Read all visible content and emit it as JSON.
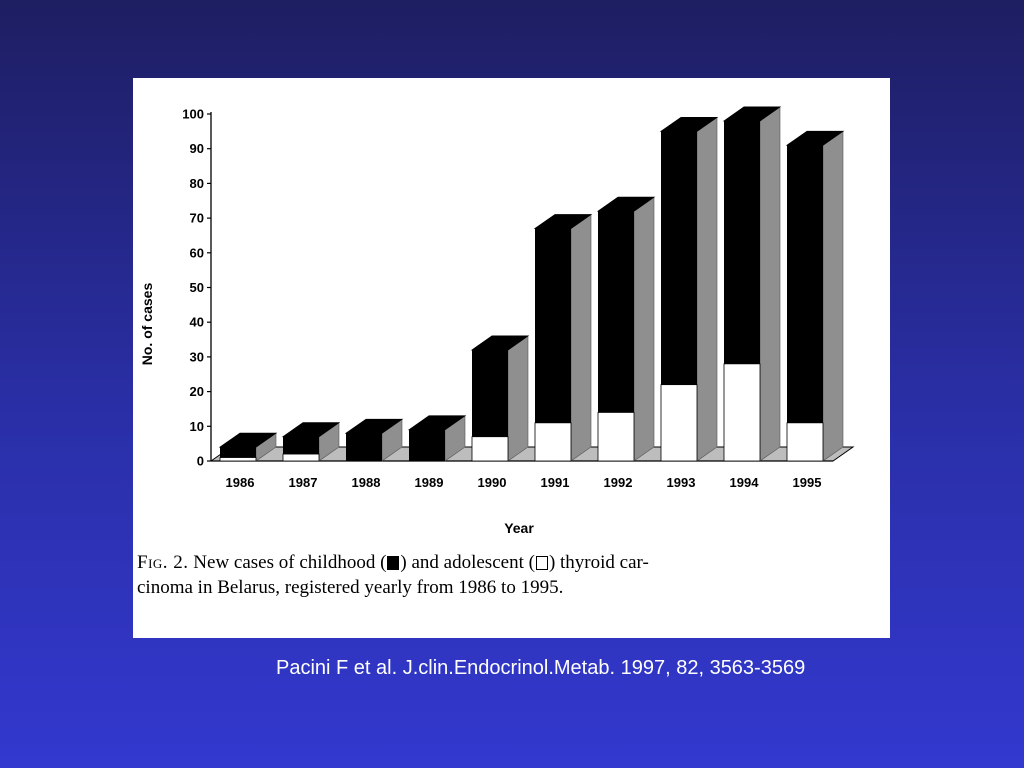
{
  "chart_data": {
    "type": "bar",
    "stacked": true,
    "three_d": true,
    "categories": [
      "1986",
      "1987",
      "1988",
      "1989",
      "1990",
      "1991",
      "1992",
      "1993",
      "1994",
      "1995"
    ],
    "series": [
      {
        "color": "#ffffff",
        "values": [
          1,
          2,
          0,
          0,
          7,
          11,
          14,
          22,
          28,
          11
        ]
      },
      {
        "color": "#000000",
        "values": [
          3,
          5,
          8,
          9,
          25,
          56,
          58,
          73,
          70,
          80
        ]
      }
    ],
    "ylim": [
      0,
      100
    ],
    "yticks": [
      "0",
      "10",
      "20",
      "30",
      "40",
      "50",
      "60",
      "70",
      "80",
      "90",
      "100"
    ],
    "xlabel": "Year",
    "ylabel": "No. of cases",
    "legend": "none"
  },
  "caption": {
    "fig_label": "Fig. 2.",
    "text_part1": "New cases of childhood (",
    "text_part2": ") and adolescent (",
    "text_part3": ") thyroid car-",
    "line2": "cinoma in Belarus, registered yearly from 1986 to 1995."
  },
  "citation": "Pacini F et al. J.clin.Endocrinol.Metab. 1997, 82, 3563-3569"
}
